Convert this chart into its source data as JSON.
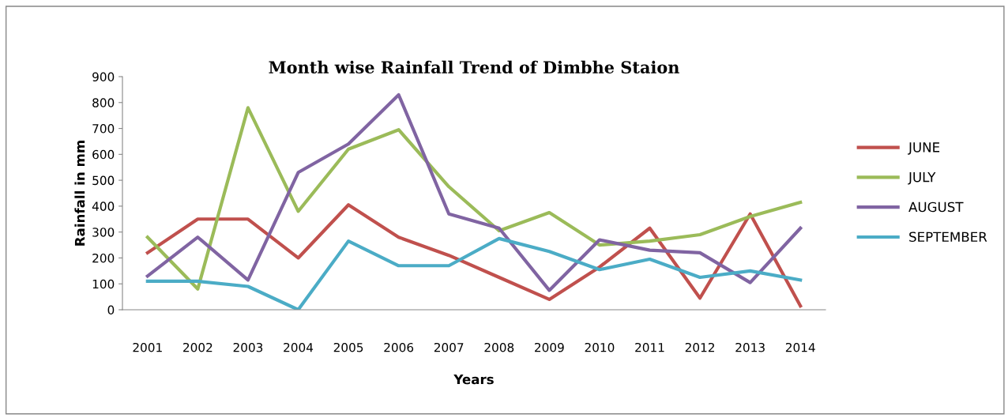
{
  "chart_data": {
    "type": "line",
    "title": "Month wise Rainfall Trend of Dimbhe Staion",
    "xlabel": "Years",
    "ylabel": "Rainfall in mm",
    "categories": [
      "2001",
      "2002",
      "2003",
      "2004",
      "2005",
      "2006",
      "2007",
      "2008",
      "2009",
      "2010",
      "2011",
      "2012",
      "2013",
      "2014"
    ],
    "series": [
      {
        "name": "JUNE",
        "color": "#c0504d",
        "values": [
          220,
          350,
          350,
          200,
          405,
          280,
          210,
          125,
          40,
          165,
          315,
          45,
          370,
          15
        ]
      },
      {
        "name": "JULY",
        "color": "#9bbb59",
        "values": [
          280,
          80,
          780,
          380,
          620,
          695,
          475,
          305,
          375,
          250,
          265,
          290,
          360,
          415
        ]
      },
      {
        "name": "AUGUST",
        "color": "#8064a2",
        "values": [
          130,
          280,
          115,
          530,
          640,
          830,
          370,
          315,
          75,
          270,
          230,
          220,
          105,
          315
        ]
      },
      {
        "name": "SEPTEMBER",
        "color": "#4bacc6",
        "values": [
          110,
          110,
          90,
          0,
          265,
          170,
          170,
          275,
          225,
          155,
          195,
          125,
          150,
          115
        ]
      }
    ],
    "ylim": [
      0,
      900
    ],
    "yticks": [
      0,
      100,
      200,
      300,
      400,
      500,
      600,
      700,
      800,
      900
    ],
    "grid": false,
    "legend": "right",
    "marker": "none",
    "line_style": "solid"
  }
}
